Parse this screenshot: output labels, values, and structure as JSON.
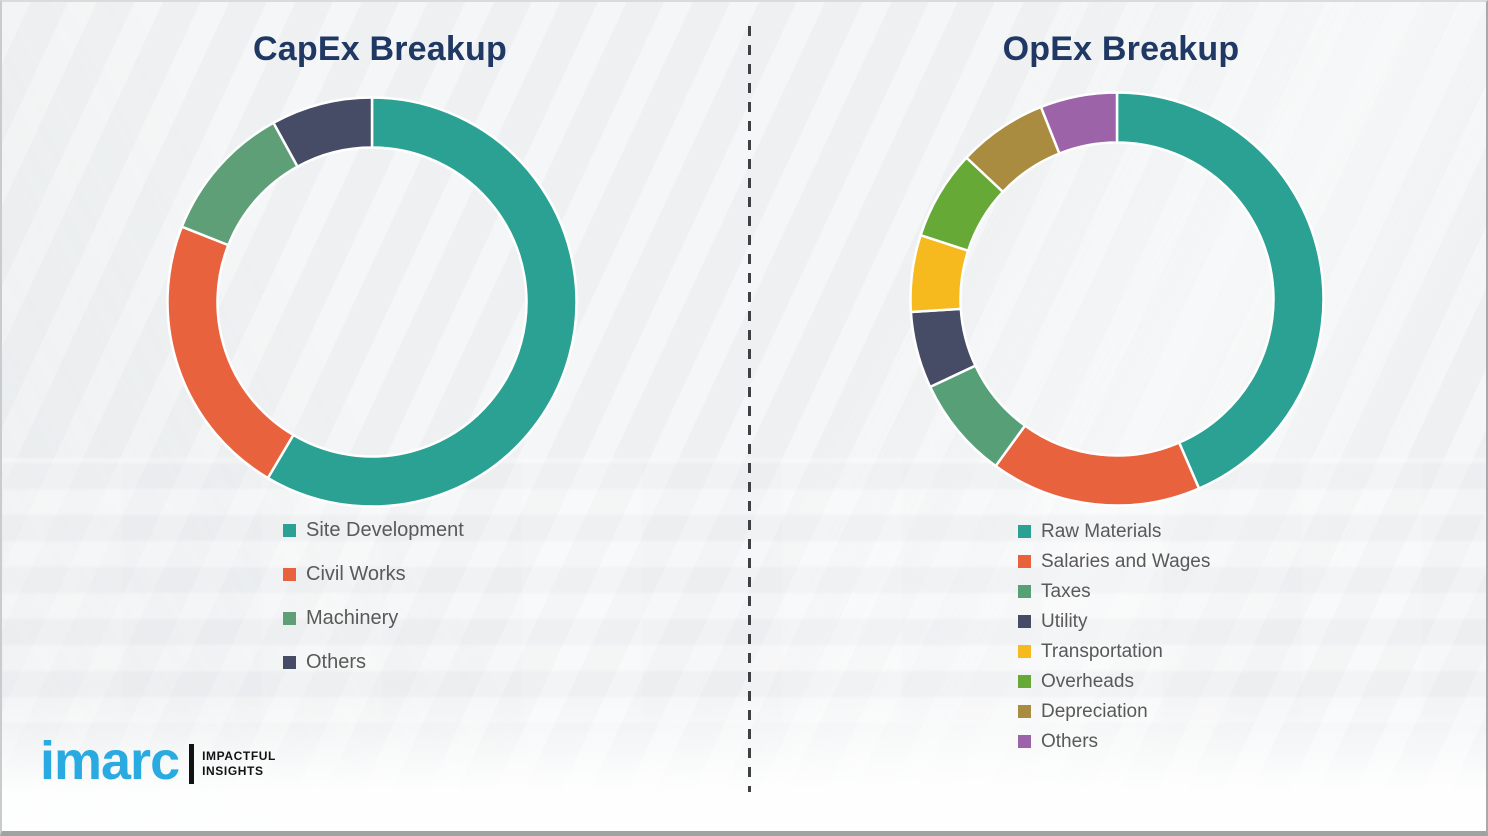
{
  "page": {
    "background_color": "#f0f2f3",
    "title_color": "#1f3864",
    "legend_text_color": "#595959"
  },
  "chart_data": [
    {
      "type": "pie",
      "subtype": "donut",
      "title": "CapEx Breakup",
      "labels": [
        "Site Development",
        "Civil Works",
        "Machinery",
        "Others"
      ],
      "values": [
        58.5,
        22.5,
        11,
        8
      ],
      "unit": "percent-estimated",
      "colors": [
        "#2aa193",
        "#e8623d",
        "#5f9f78",
        "#474c66"
      ],
      "start_angle_deg": 0,
      "direction": "clockwise",
      "legend_position": "bottom-left"
    },
    {
      "type": "pie",
      "subtype": "donut",
      "title": "OpEx Breakup",
      "labels": [
        "Raw Materials",
        "Salaries and Wages",
        "Taxes",
        "Utility",
        "Transportation",
        "Overheads",
        "Depreciation",
        "Others"
      ],
      "values": [
        43.5,
        16.5,
        8,
        6,
        6,
        7,
        7,
        6
      ],
      "unit": "percent-estimated",
      "colors": [
        "#2aa193",
        "#e8623d",
        "#57a077",
        "#474c66",
        "#f6b91e",
        "#66a936",
        "#a98c3f",
        "#9c63a8"
      ],
      "start_angle_deg": 0,
      "direction": "clockwise",
      "legend_position": "bottom-left"
    }
  ],
  "logo": {
    "brand": "imarc",
    "brand_color": "#29abe2",
    "tagline": [
      "IMPACTFUL",
      "INSIGHTS"
    ]
  }
}
